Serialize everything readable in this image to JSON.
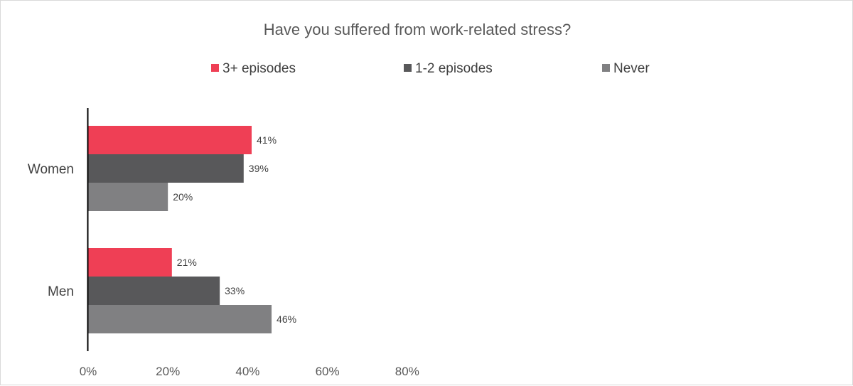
{
  "chart_data": {
    "type": "bar",
    "orientation": "horizontal",
    "title": "Have you suffered from work-related stress?",
    "categories": [
      "Women",
      "Men"
    ],
    "series": [
      {
        "name": "3+ episodes",
        "values": [
          41,
          21
        ],
        "color": "#ef3f55"
      },
      {
        "name": "1-2 episodes",
        "values": [
          39,
          33
        ],
        "color": "#58585a"
      },
      {
        "name": "Never",
        "values": [
          20,
          46
        ],
        "color": "#808082"
      }
    ],
    "value_suffix": "%",
    "xlim": [
      0,
      80
    ],
    "xticks": [
      "0%",
      "20%",
      "40%",
      "60%",
      "80%"
    ],
    "xlabel": "",
    "ylabel": "",
    "grid": false,
    "legend_position": "top"
  }
}
